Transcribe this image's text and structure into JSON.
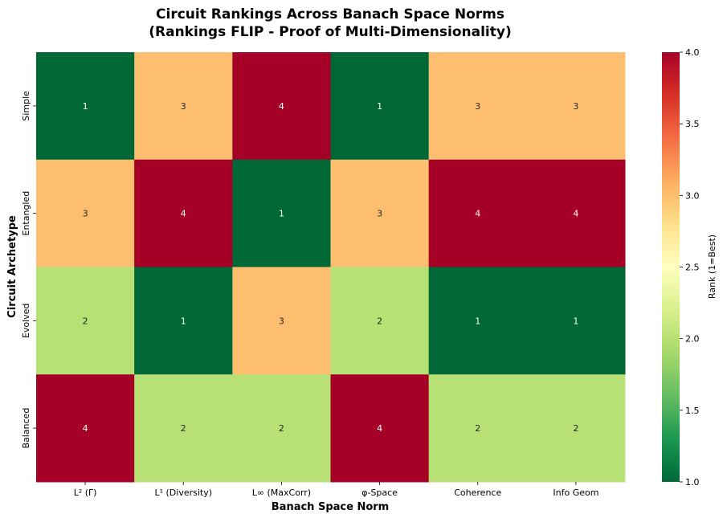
{
  "chart_data": {
    "type": "heatmap",
    "title_lines": [
      "Circuit Rankings Across Banach Space Norms",
      "(Rankings FLIP - Proof of Multi-Dimensionality)"
    ],
    "xlabel": "Banach Space Norm",
    "ylabel": "Circuit Archetype",
    "columns": [
      "L² (Γ)",
      "L¹ (Diversity)",
      "L∞ (MaxCorr)",
      "φ-Space",
      "Coherence",
      "Info Geom"
    ],
    "rows": [
      "Simple",
      "Entangled",
      "Evolved",
      "Balanced"
    ],
    "values": [
      [
        1,
        3,
        4,
        1,
        3,
        3
      ],
      [
        3,
        4,
        1,
        3,
        4,
        4
      ],
      [
        2,
        1,
        3,
        2,
        1,
        1
      ],
      [
        4,
        2,
        2,
        4,
        2,
        2
      ]
    ],
    "colorbar": {
      "label": "Rank (1=Best)",
      "range": [
        1.0,
        4.0
      ],
      "ticks": [
        "1.0",
        "1.5",
        "2.0",
        "2.5",
        "3.0",
        "3.5",
        "4.0"
      ],
      "colormap": "RdYlGn_r"
    }
  }
}
